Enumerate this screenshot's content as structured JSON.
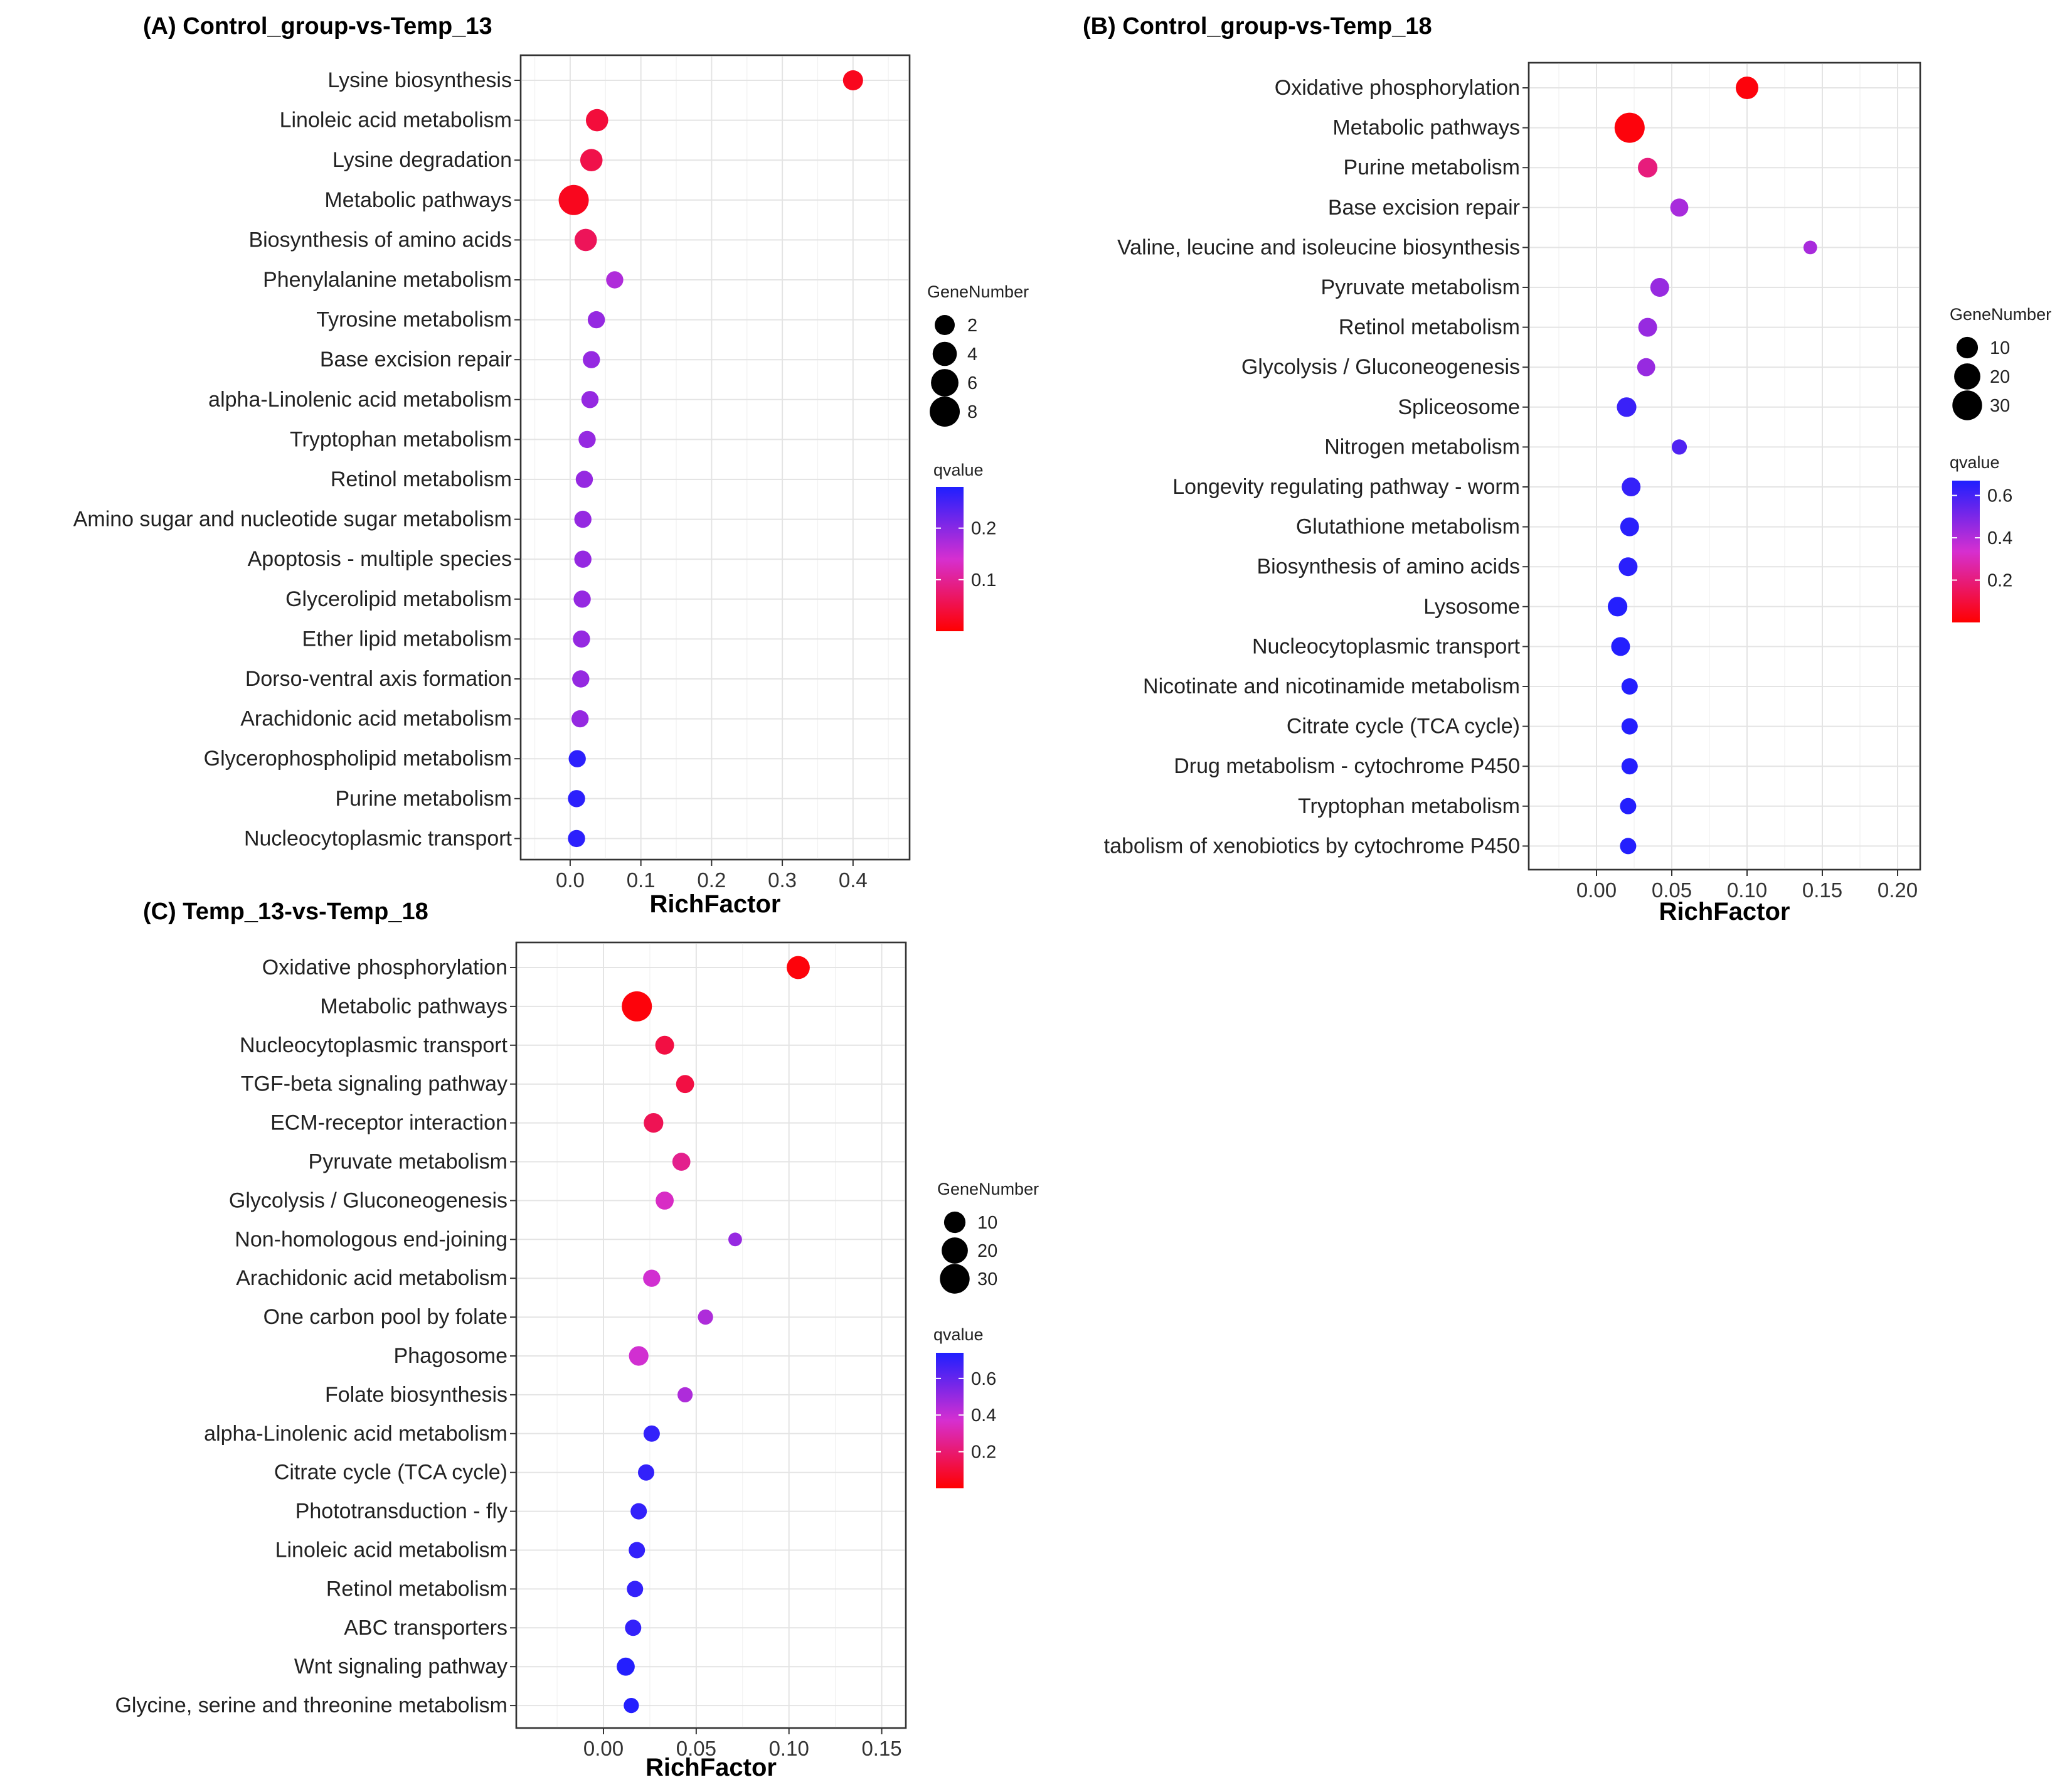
{
  "chart_data": [
    {
      "id": "A",
      "type": "scatter",
      "title": "(A) Control_group-vs-Temp_13",
      "xlabel": "RichFactor",
      "ylabel": "",
      "xlim": [
        -0.07,
        0.48
      ],
      "xticks": [
        0.0,
        0.1,
        0.2,
        0.3,
        0.4
      ],
      "xtick_labels": [
        "0.0",
        "0.1",
        "0.2",
        "0.3",
        "0.4"
      ],
      "categories": [
        "Lysine biosynthesis",
        "Linoleic acid metabolism",
        "Lysine degradation",
        "Metabolic pathways",
        "Biosynthesis of amino acids",
        "Phenylalanine metabolism",
        "Tyrosine metabolism",
        "Base excision repair",
        "alpha-Linolenic acid metabolism",
        "Tryptophan metabolism",
        "Retinol metabolism",
        "Amino sugar and nucleotide sugar metabolism",
        "Apoptosis - multiple species",
        "Glycerolipid metabolism",
        "Ether lipid metabolism",
        "Dorso-ventral axis formation",
        "Arachidonic acid metabolism",
        "Glycerophospholipid metabolism",
        "Purine metabolism",
        "Nucleocytoplasmic transport"
      ],
      "rich_factor": [
        0.4,
        0.038,
        0.03,
        0.005,
        0.022,
        0.063,
        0.037,
        0.03,
        0.028,
        0.024,
        0.02,
        0.018,
        0.018,
        0.017,
        0.016,
        0.015,
        0.014,
        0.01,
        0.009,
        0.009
      ],
      "gene_number": [
        2,
        3,
        3,
        8,
        3,
        1,
        1,
        1,
        1,
        1,
        1,
        1,
        1,
        1,
        1,
        1,
        1,
        1,
        1,
        1
      ],
      "qvalue": [
        0.02,
        0.04,
        0.05,
        0.02,
        0.06,
        0.17,
        0.19,
        0.19,
        0.19,
        0.19,
        0.19,
        0.19,
        0.19,
        0.19,
        0.19,
        0.19,
        0.19,
        0.27,
        0.27,
        0.27
      ],
      "size_legend": {
        "title": "GeneNumber",
        "values": [
          2,
          4,
          6,
          8
        ],
        "labels": [
          "2",
          "4",
          "6",
          "8"
        ],
        "max": 8
      },
      "color_legend": {
        "title": "qvalue",
        "low": 0.0,
        "high": 0.28,
        "tick_values": [
          0.2,
          0.1
        ],
        "tick_labels": [
          "0.2",
          "0.1"
        ]
      }
    },
    {
      "id": "B",
      "type": "scatter",
      "title": "(B) Control_group-vs-Temp_18",
      "xlabel": "RichFactor",
      "ylabel": "",
      "xlim": [
        -0.045,
        0.215
      ],
      "xticks": [
        0.0,
        0.05,
        0.1,
        0.15,
        0.2
      ],
      "xtick_labels": [
        "0.00",
        "0.05",
        "0.10",
        "0.15",
        "0.20"
      ],
      "categories": [
        "Oxidative phosphorylation",
        "Metabolic pathways",
        "Purine metabolism",
        "Base excision repair",
        "Valine, leucine and isoleucine biosynthesis",
        "Pyruvate metabolism",
        "Retinol metabolism",
        "Glycolysis / Gluconeogenesis",
        "Spliceosome",
        "Nitrogen metabolism",
        "Longevity regulating pathway - worm",
        "Glutathione metabolism",
        "Biosynthesis of amino acids",
        "Lysosome",
        "Nucleocytoplasmic transport",
        "Nicotinate and nicotinamide metabolism",
        "Citrate cycle (TCA cycle)",
        "Drug metabolism - cytochrome P450",
        "Tryptophan metabolism",
        "tabolism of xenobiotics by cytochrome P450"
      ],
      "rich_factor": [
        0.1,
        0.022,
        0.034,
        0.055,
        0.142,
        0.042,
        0.034,
        0.033,
        0.02,
        0.055,
        0.023,
        0.022,
        0.021,
        0.014,
        0.016,
        0.022,
        0.022,
        0.022,
        0.021,
        0.021
      ],
      "gene_number": [
        12,
        31,
        7,
        5,
        1,
        6,
        6,
        5,
        7,
        2,
        6,
        6,
        6,
        7,
        6,
        3,
        3,
        3,
        3,
        3
      ],
      "qvalue": [
        0.02,
        0.02,
        0.2,
        0.42,
        0.42,
        0.45,
        0.45,
        0.45,
        0.62,
        0.58,
        0.63,
        0.65,
        0.65,
        0.66,
        0.66,
        0.66,
        0.66,
        0.66,
        0.66,
        0.66
      ],
      "size_legend": {
        "title": "GeneNumber",
        "values": [
          10,
          20,
          30
        ],
        "labels": [
          "10",
          "20",
          "30"
        ],
        "max": 31
      },
      "color_legend": {
        "title": "qvalue",
        "low": 0.0,
        "high": 0.67,
        "tick_values": [
          0.6,
          0.4,
          0.2
        ],
        "tick_labels": [
          "0.6",
          "0.4",
          "0.2"
        ]
      }
    },
    {
      "id": "C",
      "type": "scatter",
      "title": "(C) Temp_13-vs-Temp_18",
      "xlabel": "RichFactor",
      "ylabel": "",
      "xlim": [
        -0.047,
        0.163
      ],
      "xticks": [
        0.0,
        0.05,
        0.1,
        0.15
      ],
      "xtick_labels": [
        "0.00",
        "0.05",
        "0.10",
        "0.15"
      ],
      "categories": [
        "Oxidative phosphorylation",
        "Metabolic pathways",
        "Nucleocytoplasmic transport",
        "TGF-beta signaling pathway",
        "ECM-receptor interaction",
        "Pyruvate metabolism",
        "Glycolysis / Gluconeogenesis",
        "Non-homologous end-joining",
        "Arachidonic acid metabolism",
        "One carbon pool by folate",
        "Phagosome",
        "Folate biosynthesis",
        "alpha-Linolenic acid metabolism",
        "Citrate cycle (TCA cycle)",
        "Phototransduction - fly",
        "Linoleic acid metabolism",
        "Retinol metabolism",
        "ABC transporters",
        "Wnt signaling pathway",
        "Glycine, serine and threonine metabolism"
      ],
      "rich_factor": [
        0.105,
        0.018,
        0.033,
        0.044,
        0.027,
        0.042,
        0.033,
        0.071,
        0.026,
        0.055,
        0.019,
        0.044,
        0.026,
        0.023,
        0.019,
        0.018,
        0.017,
        0.016,
        0.012,
        0.015
      ],
      "gene_number": [
        13,
        31,
        6,
        5,
        7,
        5,
        5,
        1,
        4,
        2,
        7,
        2,
        3,
        3,
        3,
        3,
        3,
        3,
        5,
        2
      ],
      "qvalue": [
        0.02,
        0.02,
        0.12,
        0.12,
        0.15,
        0.25,
        0.35,
        0.5,
        0.38,
        0.45,
        0.38,
        0.45,
        0.7,
        0.7,
        0.7,
        0.7,
        0.7,
        0.7,
        0.73,
        0.73
      ],
      "size_legend": {
        "title": "GeneNumber",
        "values": [
          10,
          20,
          30
        ],
        "labels": [
          "10",
          "20",
          "30"
        ],
        "max": 31
      },
      "color_legend": {
        "title": "qvalue",
        "low": 0.0,
        "high": 0.74,
        "tick_values": [
          0.6,
          0.4,
          0.2
        ],
        "tick_labels": [
          "0.6",
          "0.4",
          "0.2"
        ]
      }
    }
  ],
  "colors": {
    "low_qvalue": "#ff0000",
    "mid_qvalue": "#d62fd0",
    "high_qvalue": "#1f1fff",
    "grid": "#e4e4e4",
    "frame": "#333333"
  }
}
